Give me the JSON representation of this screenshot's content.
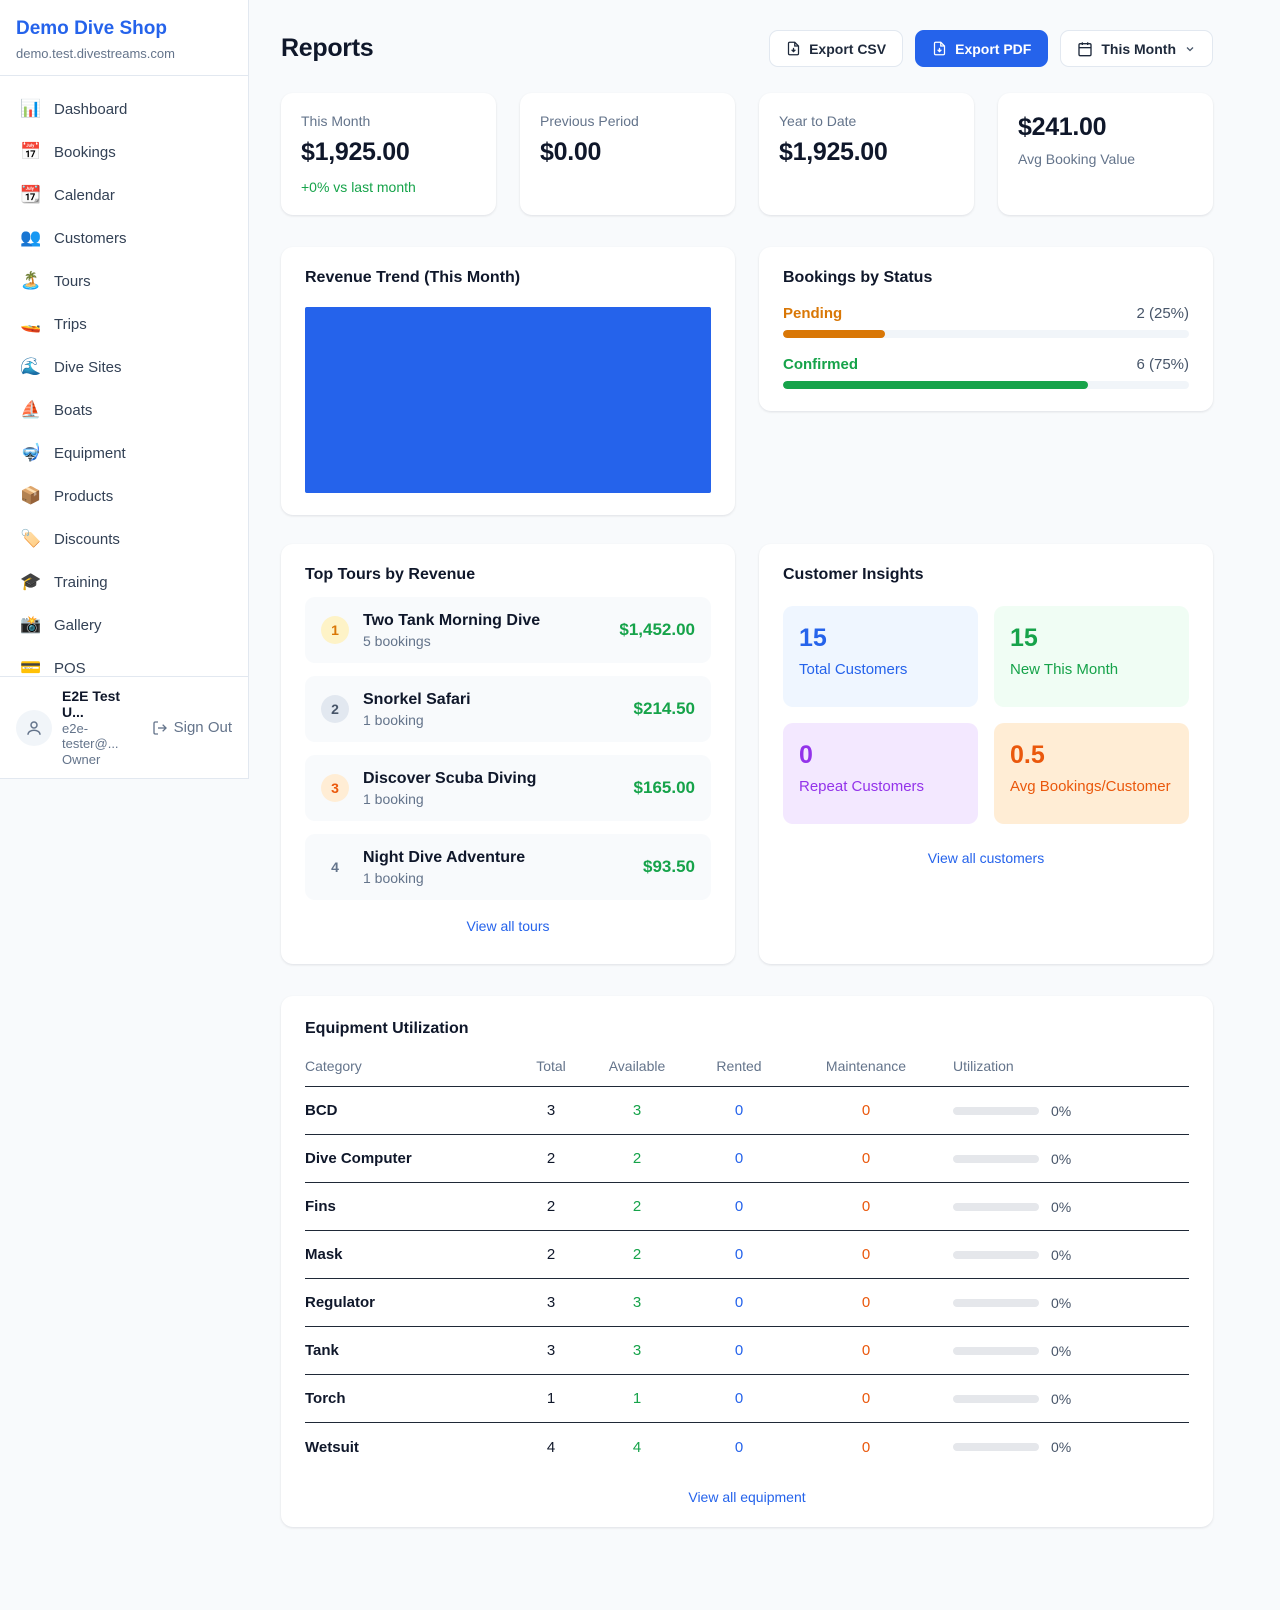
{
  "colors": {
    "accent_blue": "#2563eb",
    "green": "#16a34a",
    "orange_pending": "#d97706",
    "orange_maintenance": "#ea580c",
    "purple": "#9333ea",
    "page_bg": "#f8fafc"
  },
  "sidebar": {
    "title": "Demo Dive Shop",
    "subdomain": "demo.test.divestreams.com",
    "nav": [
      {
        "icon": "📊",
        "label": "Dashboard"
      },
      {
        "icon": "📅",
        "label": "Bookings"
      },
      {
        "icon": "📆",
        "label": "Calendar"
      },
      {
        "icon": "👥",
        "label": "Customers"
      },
      {
        "icon": "🏝️",
        "label": "Tours"
      },
      {
        "icon": "🚤",
        "label": "Trips"
      },
      {
        "icon": "🌊",
        "label": "Dive Sites"
      },
      {
        "icon": "⛵",
        "label": "Boats"
      },
      {
        "icon": "🤿",
        "label": "Equipment"
      },
      {
        "icon": "📦",
        "label": "Products"
      },
      {
        "icon": "🏷️",
        "label": "Discounts"
      },
      {
        "icon": "🎓",
        "label": "Training"
      },
      {
        "icon": "📸",
        "label": "Gallery"
      },
      {
        "icon": "💳",
        "label": "POS"
      }
    ],
    "user": {
      "name": "E2E Test U...",
      "email": "e2e-tester@...",
      "role": "Owner",
      "signout_label": "Sign Out"
    }
  },
  "header": {
    "title": "Reports",
    "export_csv_label": "Export CSV",
    "export_pdf_label": "Export PDF",
    "period_label": "This Month"
  },
  "stats": [
    {
      "label": "This Month",
      "value": "$1,925.00",
      "delta": "+0% vs last month"
    },
    {
      "label": "Previous Period",
      "value": "$0.00"
    },
    {
      "label": "Year to Date",
      "value": "$1,925.00"
    },
    {
      "label": "Avg Booking Value",
      "value": "$241.00"
    }
  ],
  "revenue_trend": {
    "title": "Revenue Trend (This Month)"
  },
  "bookings_by_status": {
    "title": "Bookings by Status",
    "items": [
      {
        "label": "Pending",
        "count": "2 (25%)",
        "pct": 25
      },
      {
        "label": "Confirmed",
        "count": "6 (75%)",
        "pct": 75
      }
    ]
  },
  "top_tours": {
    "title": "Top Tours by Revenue",
    "items": [
      {
        "rank": "1",
        "name": "Two Tank Morning Dive",
        "bookings": "5 bookings",
        "revenue": "$1,452.00"
      },
      {
        "rank": "2",
        "name": "Snorkel Safari",
        "bookings": "1 booking",
        "revenue": "$214.50"
      },
      {
        "rank": "3",
        "name": "Discover Scuba Diving",
        "bookings": "1 booking",
        "revenue": "$165.00"
      },
      {
        "rank": "4",
        "name": "Night Dive Adventure",
        "bookings": "1 booking",
        "revenue": "$93.50"
      }
    ],
    "link": "View all tours"
  },
  "customer_insights": {
    "title": "Customer Insights",
    "tiles": [
      {
        "value": "15",
        "label": "Total Customers"
      },
      {
        "value": "15",
        "label": "New This Month"
      },
      {
        "value": "0",
        "label": "Repeat Customers"
      },
      {
        "value": "0.5",
        "label": "Avg Bookings/Customer"
      }
    ],
    "link": "View all customers"
  },
  "equipment": {
    "title": "Equipment Utilization",
    "columns": [
      "Category",
      "Total",
      "Available",
      "Rented",
      "Maintenance",
      "Utilization"
    ],
    "rows": [
      {
        "category": "BCD",
        "total": "3",
        "available": "3",
        "rented": "0",
        "maintenance": "0",
        "utilization_pct": 0,
        "utilization": "0%"
      },
      {
        "category": "Dive Computer",
        "total": "2",
        "available": "2",
        "rented": "0",
        "maintenance": "0",
        "utilization_pct": 0,
        "utilization": "0%"
      },
      {
        "category": "Fins",
        "total": "2",
        "available": "2",
        "rented": "0",
        "maintenance": "0",
        "utilization_pct": 0,
        "utilization": "0%"
      },
      {
        "category": "Mask",
        "total": "2",
        "available": "2",
        "rented": "0",
        "maintenance": "0",
        "utilization_pct": 0,
        "utilization": "0%"
      },
      {
        "category": "Regulator",
        "total": "3",
        "available": "3",
        "rented": "0",
        "maintenance": "0",
        "utilization_pct": 0,
        "utilization": "0%"
      },
      {
        "category": "Tank",
        "total": "3",
        "available": "3",
        "rented": "0",
        "maintenance": "0",
        "utilization_pct": 0,
        "utilization": "0%"
      },
      {
        "category": "Torch",
        "total": "1",
        "available": "1",
        "rented": "0",
        "maintenance": "0",
        "utilization_pct": 0,
        "utilization": "0%"
      },
      {
        "category": "Wetsuit",
        "total": "4",
        "available": "4",
        "rented": "0",
        "maintenance": "0",
        "utilization_pct": 0,
        "utilization": "0%"
      }
    ],
    "link": "View all equipment"
  }
}
